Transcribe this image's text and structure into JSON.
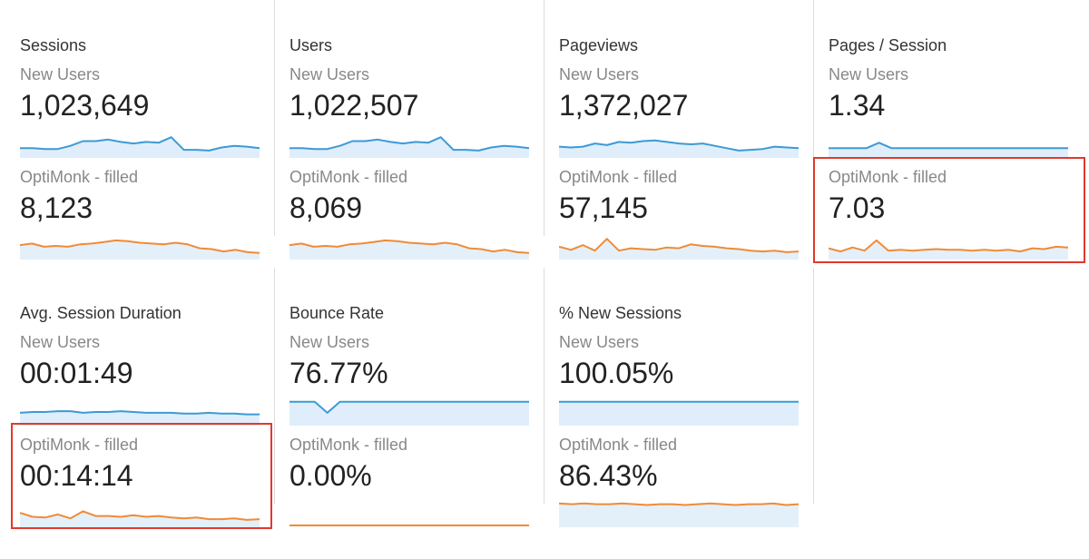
{
  "cards": [
    {
      "title": "Sessions",
      "segments": [
        {
          "label": "New Users",
          "value": "1,023,649",
          "trend": [
            10,
            10,
            9,
            9,
            13,
            19,
            19,
            21,
            18,
            16,
            18,
            17,
            24,
            8,
            8,
            7,
            11,
            13,
            12,
            10
          ],
          "flat": false
        },
        {
          "label": "OptiMonk - filled",
          "value": "8,123",
          "trend": [
            16,
            18,
            14,
            15,
            14,
            17,
            18,
            20,
            22,
            21,
            19,
            18,
            17,
            19,
            17,
            12,
            11,
            8,
            10,
            7,
            6
          ],
          "flat": false
        }
      ]
    },
    {
      "title": "Users",
      "segments": [
        {
          "label": "New Users",
          "value": "1,022,507",
          "trend": [
            10,
            10,
            9,
            9,
            13,
            19,
            19,
            21,
            18,
            16,
            18,
            17,
            24,
            8,
            8,
            7,
            11,
            13,
            12,
            10
          ],
          "flat": false
        },
        {
          "label": "OptiMonk - filled",
          "value": "8,069",
          "trend": [
            16,
            18,
            14,
            15,
            14,
            17,
            18,
            20,
            22,
            21,
            19,
            18,
            17,
            19,
            17,
            12,
            11,
            8,
            10,
            7,
            6
          ],
          "flat": false
        }
      ]
    },
    {
      "title": "Pageviews",
      "segments": [
        {
          "label": "New Users",
          "value": "1,372,027",
          "trend": [
            12,
            11,
            12,
            16,
            14,
            18,
            17,
            19,
            20,
            18,
            16,
            15,
            16,
            13,
            10,
            7,
            8,
            9,
            12,
            11,
            10
          ],
          "flat": false
        },
        {
          "label": "OptiMonk - filled",
          "value": "57,145",
          "trend": [
            14,
            10,
            16,
            9,
            24,
            9,
            12,
            11,
            10,
            13,
            12,
            17,
            15,
            14,
            12,
            11,
            9,
            8,
            9,
            7,
            8
          ],
          "flat": false
        }
      ]
    },
    {
      "title": "Pages / Session",
      "segments": [
        {
          "label": "New Users",
          "value": "1.34",
          "trend": [
            10,
            10,
            10,
            10,
            17,
            10,
            10,
            10,
            10,
            10,
            10,
            10,
            10,
            10,
            10,
            10,
            10,
            10,
            10,
            10
          ],
          "flat": false
        },
        {
          "label": "OptiMonk - filled",
          "value": "7.03",
          "trend": [
            12,
            8,
            13,
            9,
            22,
            9,
            10,
            9,
            10,
            11,
            10,
            10,
            9,
            10,
            9,
            10,
            8,
            12,
            11,
            14,
            13
          ],
          "flat": false
        }
      ]
    },
    {
      "title": "Avg. Session Duration",
      "segments": [
        {
          "label": "New Users",
          "value": "00:01:49",
          "trend": [
            14,
            15,
            15,
            16,
            16,
            14,
            15,
            15,
            16,
            15,
            14,
            14,
            14,
            13,
            13,
            14,
            13,
            13,
            12,
            12
          ],
          "flat": false
        },
        {
          "label": "OptiMonk - filled",
          "value": "00:14:14",
          "trend": [
            16,
            11,
            10,
            14,
            9,
            18,
            12,
            12,
            11,
            13,
            11,
            12,
            10,
            9,
            10,
            8,
            8,
            9,
            7,
            8
          ],
          "flat": false
        }
      ]
    },
    {
      "title": "Bounce Rate",
      "segments": [
        {
          "label": "New Users",
          "value": "76.77%",
          "trend": [
            28,
            28,
            28,
            14,
            28,
            28,
            28,
            28,
            28,
            28,
            28,
            28,
            28,
            28,
            28,
            28,
            28,
            28,
            28,
            28
          ],
          "flat": false
        },
        {
          "label": "OptiMonk - filled",
          "value": "0.00%",
          "trend": [
            0,
            0,
            0,
            0,
            0,
            0,
            0,
            0,
            0,
            0,
            0,
            0,
            0,
            0,
            0,
            0,
            0,
            0,
            0,
            0
          ],
          "flat": true
        }
      ]
    },
    {
      "title": "% New Sessions",
      "segments": [
        {
          "label": "New Users",
          "value": "100.05%",
          "trend": [
            28,
            28,
            28,
            28,
            28,
            28,
            28,
            28,
            28,
            28,
            28,
            28,
            28,
            28,
            28,
            28,
            28,
            28,
            28,
            28
          ],
          "flat": false
        },
        {
          "label": "OptiMonk - filled",
          "value": "86.43%",
          "trend": [
            28,
            27,
            28,
            27,
            27,
            28,
            27,
            26,
            27,
            27,
            26,
            27,
            28,
            27,
            26,
            27,
            27,
            28,
            26,
            27
          ],
          "flat": false
        }
      ]
    }
  ],
  "colors": {
    "seg1_line": "#3d9ad6",
    "seg1_fill": "#dfeefa",
    "seg2_line": "#f08b36",
    "seg2_fill": "#e3f0fa",
    "highlight": "#e0392e"
  }
}
